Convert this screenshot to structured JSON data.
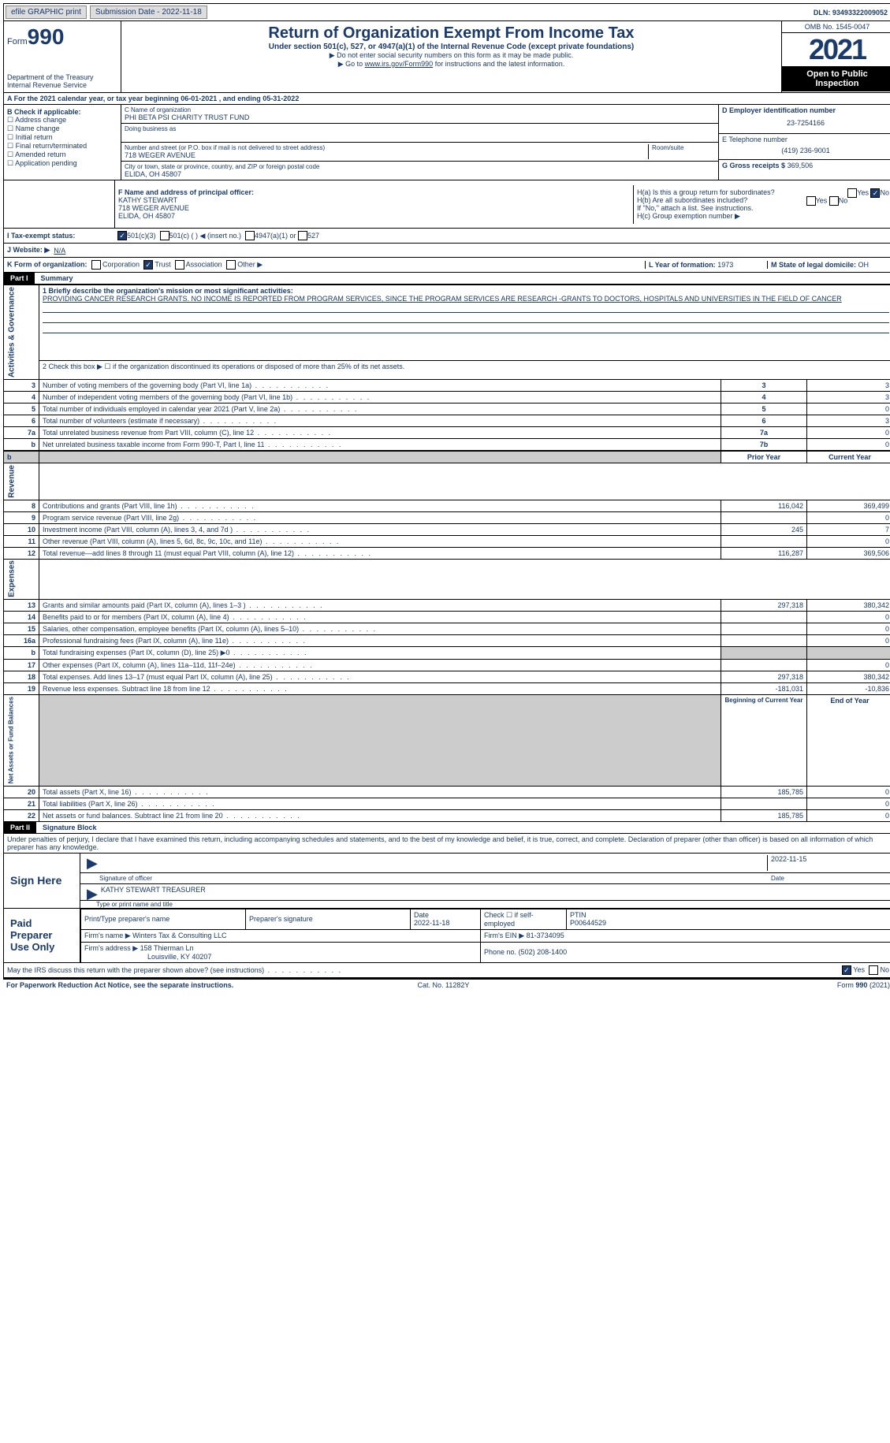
{
  "top": {
    "efile": "efile GRAPHIC print",
    "submission": "Submission Date - 2022-11-18",
    "dln": "DLN: 93493322009052"
  },
  "header": {
    "form_label": "Form",
    "form_num": "990",
    "dept": "Department of the Treasury Internal Revenue Service",
    "title": "Return of Organization Exempt From Income Tax",
    "sub": "Under section 501(c), 527, or 4947(a)(1) of the Internal Revenue Code (except private foundations)",
    "note1": "Do not enter social security numbers on this form as it may be made public.",
    "note2_pre": "Go to ",
    "note2_link": "www.irs.gov/Form990",
    "note2_post": " for instructions and the latest information.",
    "omb": "OMB No. 1545-0047",
    "year": "2021",
    "open": "Open to Public Inspection"
  },
  "rowA": "A  For the 2021 calendar year, or tax year beginning 06-01-2021    , and ending 05-31-2022",
  "colB": {
    "label": "B Check if applicable:",
    "opts": [
      "Address change",
      "Name change",
      "Initial return",
      "Final return/terminated",
      "Amended return",
      "Application pending"
    ]
  },
  "colC": {
    "name_label": "C Name of organization",
    "name": "PHI BETA PSI CHARITY TRUST FUND",
    "dba_label": "Doing business as",
    "addr_label": "Number and street (or P.O. box if mail is not delivered to street address)",
    "room_label": "Room/suite",
    "addr": "718 WEGER AVENUE",
    "city_label": "City or town, state or province, country, and ZIP or foreign postal code",
    "city": "ELIDA, OH  45807"
  },
  "colD": {
    "ein_label": "D Employer identification number",
    "ein": "23-7254166",
    "tel_label": "E Telephone number",
    "tel": "(419) 236-9001",
    "gross_label": "G Gross receipts $",
    "gross": "369,506"
  },
  "rowF": {
    "label": "F  Name and address of principal officer:",
    "name": "KATHY STEWART",
    "addr1": "718 WEGER AVENUE",
    "addr2": "ELIDA, OH  45807"
  },
  "rowH": {
    "ha": "H(a)  Is this a group return for subordinates?",
    "hb": "H(b)  Are all subordinates included?",
    "hnote": "If \"No,\" attach a list. See instructions.",
    "hc": "H(c)  Group exemption number ▶"
  },
  "rowI": {
    "label": "I  Tax-exempt status:",
    "o1": "501(c)(3)",
    "o2": "501(c) (  ) ◀ (insert no.)",
    "o3": "4947(a)(1) or",
    "o4": "527"
  },
  "rowJ": {
    "label": "J  Website: ▶",
    "val": "N/A"
  },
  "rowK": {
    "label": "K Form of organization:",
    "o1": "Corporation",
    "o2": "Trust",
    "o3": "Association",
    "o4": "Other ▶"
  },
  "rowL": {
    "label": "L Year of formation:",
    "val": "1973"
  },
  "rowM": {
    "label": "M State of legal domicile:",
    "val": "OH"
  },
  "part1": {
    "hdr": "Part I",
    "title": "Summary"
  },
  "summary": {
    "s1_label": "1  Briefly describe the organization's mission or most significant activities:",
    "s1_text": "PROVIDING CANCER RESEARCH GRANTS. NO INCOME IS REPORTED FROM PROGRAM SERVICES, SINCE THE PROGRAM SERVICES ARE RESEARCH -GRANTS TO DOCTORS, HOSPITALS AND UNIVERSITIES IN THE FIELD OF CANCER",
    "s2": "2   Check this box ▶ ☐  if the organization discontinued its operations or disposed of more than 25% of its net assets.",
    "rows_ag": [
      {
        "n": "3",
        "t": "Number of voting members of the governing body (Part VI, line 1a)",
        "b": "3",
        "v": "3"
      },
      {
        "n": "4",
        "t": "Number of independent voting members of the governing body (Part VI, line 1b)",
        "b": "4",
        "v": "3"
      },
      {
        "n": "5",
        "t": "Total number of individuals employed in calendar year 2021 (Part V, line 2a)",
        "b": "5",
        "v": "0"
      },
      {
        "n": "6",
        "t": "Total number of volunteers (estimate if necessary)",
        "b": "6",
        "v": "3"
      },
      {
        "n": "7a",
        "t": "Total unrelated business revenue from Part VIII, column (C), line 12",
        "b": "7a",
        "v": "0"
      },
      {
        "n": "b",
        "t": "Net unrelated business taxable income from Form 990-T, Part I, line 11",
        "b": "7b",
        "v": "0"
      }
    ],
    "py_hdr": "Prior Year",
    "cy_hdr": "Current Year",
    "rows_rev": [
      {
        "n": "8",
        "t": "Contributions and grants (Part VIII, line 1h)",
        "py": "116,042",
        "cy": "369,499"
      },
      {
        "n": "9",
        "t": "Program service revenue (Part VIII, line 2g)",
        "py": "",
        "cy": "0"
      },
      {
        "n": "10",
        "t": "Investment income (Part VIII, column (A), lines 3, 4, and 7d )",
        "py": "245",
        "cy": "7"
      },
      {
        "n": "11",
        "t": "Other revenue (Part VIII, column (A), lines 5, 6d, 8c, 9c, 10c, and 11e)",
        "py": "",
        "cy": "0"
      },
      {
        "n": "12",
        "t": "Total revenue—add lines 8 through 11 (must equal Part VIII, column (A), line 12)",
        "py": "116,287",
        "cy": "369,506"
      }
    ],
    "rows_exp": [
      {
        "n": "13",
        "t": "Grants and similar amounts paid (Part IX, column (A), lines 1–3 )",
        "py": "297,318",
        "cy": "380,342"
      },
      {
        "n": "14",
        "t": "Benefits paid to or for members (Part IX, column (A), line 4)",
        "py": "",
        "cy": "0"
      },
      {
        "n": "15",
        "t": "Salaries, other compensation, employee benefits (Part IX, column (A), lines 5–10)",
        "py": "",
        "cy": "0"
      },
      {
        "n": "16a",
        "t": "Professional fundraising fees (Part IX, column (A), line 11e)",
        "py": "",
        "cy": "0"
      },
      {
        "n": "b",
        "t": "Total fundraising expenses (Part IX, column (D), line 25) ▶0",
        "py": "SHADE",
        "cy": "SHADE"
      },
      {
        "n": "17",
        "t": "Other expenses (Part IX, column (A), lines 11a–11d, 11f–24e)",
        "py": "",
        "cy": "0"
      },
      {
        "n": "18",
        "t": "Total expenses. Add lines 13–17 (must equal Part IX, column (A), line 25)",
        "py": "297,318",
        "cy": "380,342"
      },
      {
        "n": "19",
        "t": "Revenue less expenses. Subtract line 18 from line 12",
        "py": "-181,031",
        "cy": "-10,836"
      }
    ],
    "boy_hdr": "Beginning of Current Year",
    "eoy_hdr": "End of Year",
    "rows_net": [
      {
        "n": "20",
        "t": "Total assets (Part X, line 16)",
        "py": "185,785",
        "cy": "0"
      },
      {
        "n": "21",
        "t": "Total liabilities (Part X, line 26)",
        "py": "",
        "cy": "0"
      },
      {
        "n": "22",
        "t": "Net assets or fund balances. Subtract line 21 from line 20",
        "py": "185,785",
        "cy": "0"
      }
    ],
    "vlabels": {
      "ag": "Activities & Governance",
      "rev": "Revenue",
      "exp": "Expenses",
      "net": "Net Assets or Fund Balances"
    }
  },
  "part2": {
    "hdr": "Part II",
    "title": "Signature Block"
  },
  "sig": {
    "penalty": "Under penalties of perjury, I declare that I have examined this return, including accompanying schedules and statements, and to the best of my knowledge and belief, it is true, correct, and complete. Declaration of preparer (other than officer) is based on all information of which preparer has any knowledge.",
    "sign_here": "Sign Here",
    "sig_officer": "Signature of officer",
    "sig_date": "2022-11-15",
    "date_label": "Date",
    "name_title": "KATHY STEWART TREASURER",
    "type_label": "Type or print name and title",
    "paid": "Paid Preparer Use Only",
    "print_label": "Print/Type preparer's name",
    "prep_sig_label": "Preparer's signature",
    "date2_label": "Date",
    "date2": "2022-11-18",
    "check_self": "Check ☐ if self-employed",
    "ptin_label": "PTIN",
    "ptin": "P00644529",
    "firm_name_label": "Firm's name    ▶",
    "firm_name": "Winters Tax & Consulting LLC",
    "firm_ein_label": "Firm's EIN ▶",
    "firm_ein": "81-3734095",
    "firm_addr_label": "Firm's address ▶",
    "firm_addr1": "158 Thierman Ln",
    "firm_addr2": "Louisville, KY  40207",
    "phone_label": "Phone no.",
    "phone": "(502) 208-1400",
    "may_irs": "May the IRS discuss this return with the preparer shown above? (see instructions)",
    "yes": "Yes",
    "no": "No"
  },
  "footer": {
    "left": "For Paperwork Reduction Act Notice, see the separate instructions.",
    "mid": "Cat. No. 11282Y",
    "right": "Form 990 (2021)"
  }
}
